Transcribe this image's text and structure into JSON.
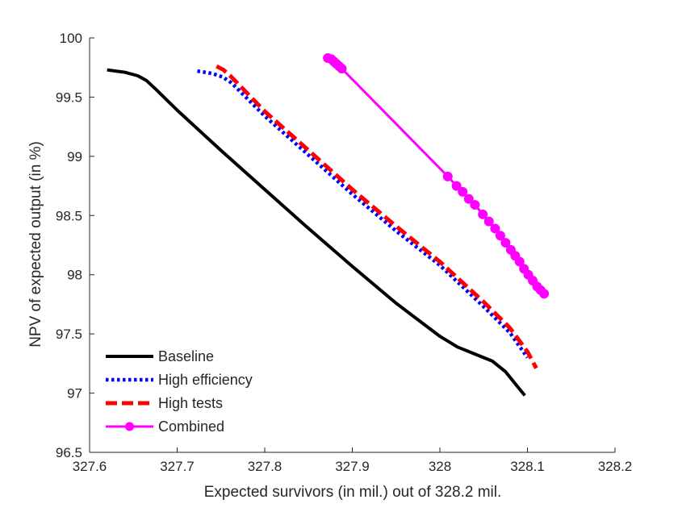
{
  "chart_data": {
    "type": "line",
    "title": "",
    "xlabel": "Expected survivors (in mil.) out of 328.2 mil.",
    "ylabel": "NPV of expected output (in %)",
    "xlim": [
      327.6,
      328.2
    ],
    "ylim": [
      96.5,
      100
    ],
    "xticks": [
      327.6,
      327.7,
      327.8,
      327.9,
      328,
      328.1,
      328.2
    ],
    "xtick_labels": [
      "327.6",
      "327.7",
      "327.8",
      "327.9",
      "328",
      "328.1",
      "328.2"
    ],
    "yticks": [
      96.5,
      97,
      97.5,
      98,
      98.5,
      99,
      99.5,
      100
    ],
    "ytick_labels": [
      "96.5",
      "97",
      "97.5",
      "98",
      "98.5",
      "99",
      "99.5",
      "100"
    ],
    "grid": false,
    "legend_position": "bottom-left",
    "series": [
      {
        "name": "Baseline",
        "color": "#000000",
        "style": "solid",
        "marker": "none",
        "x": [
          327.62,
          327.64,
          327.655,
          327.665,
          327.675,
          327.7,
          327.75,
          327.8,
          327.85,
          327.9,
          327.95,
          328.0,
          328.02,
          328.04,
          328.06,
          328.075,
          328.087,
          328.097
        ],
        "y": [
          99.73,
          99.71,
          99.68,
          99.64,
          99.57,
          99.39,
          99.05,
          98.72,
          98.39,
          98.07,
          97.76,
          97.48,
          97.39,
          97.33,
          97.27,
          97.18,
          97.07,
          96.98
        ]
      },
      {
        "name": "High efficiency",
        "color": "#0000ff",
        "style": "dotted",
        "marker": "none",
        "x": [
          327.723,
          327.74,
          327.752,
          327.762,
          327.8,
          327.85,
          327.9,
          327.95,
          328.0,
          328.05,
          328.08,
          328.1
        ],
        "y": [
          99.72,
          99.7,
          99.67,
          99.62,
          99.34,
          99.01,
          98.68,
          98.37,
          98.08,
          97.73,
          97.51,
          97.3
        ]
      },
      {
        "name": "High tests",
        "color": "#ff0000",
        "style": "dashed",
        "marker": "none",
        "x": [
          327.745,
          327.753,
          327.762,
          327.8,
          327.85,
          327.9,
          327.95,
          328.0,
          328.05,
          328.08,
          328.1,
          328.11
        ],
        "y": [
          99.76,
          99.73,
          99.67,
          99.38,
          99.05,
          98.72,
          98.41,
          98.11,
          97.77,
          97.55,
          97.35,
          97.21
        ]
      },
      {
        "name": "Combined",
        "color": "#ff00ff",
        "style": "solid",
        "marker": "circle",
        "x": [
          327.872,
          327.876,
          327.879,
          327.882,
          327.885,
          327.888,
          328.009,
          328.019,
          328.026,
          328.033,
          328.04,
          328.049,
          328.056,
          328.063,
          328.069,
          328.075,
          328.081,
          328.086,
          328.091,
          328.096,
          328.101,
          328.106,
          328.111,
          328.115,
          328.119
        ],
        "y": [
          99.83,
          99.82,
          99.8,
          99.78,
          99.76,
          99.74,
          98.83,
          98.75,
          98.7,
          98.64,
          98.59,
          98.51,
          98.45,
          98.39,
          98.33,
          98.27,
          98.21,
          98.16,
          98.11,
          98.05,
          98.0,
          97.95,
          97.9,
          97.87,
          97.84
        ]
      }
    ]
  }
}
